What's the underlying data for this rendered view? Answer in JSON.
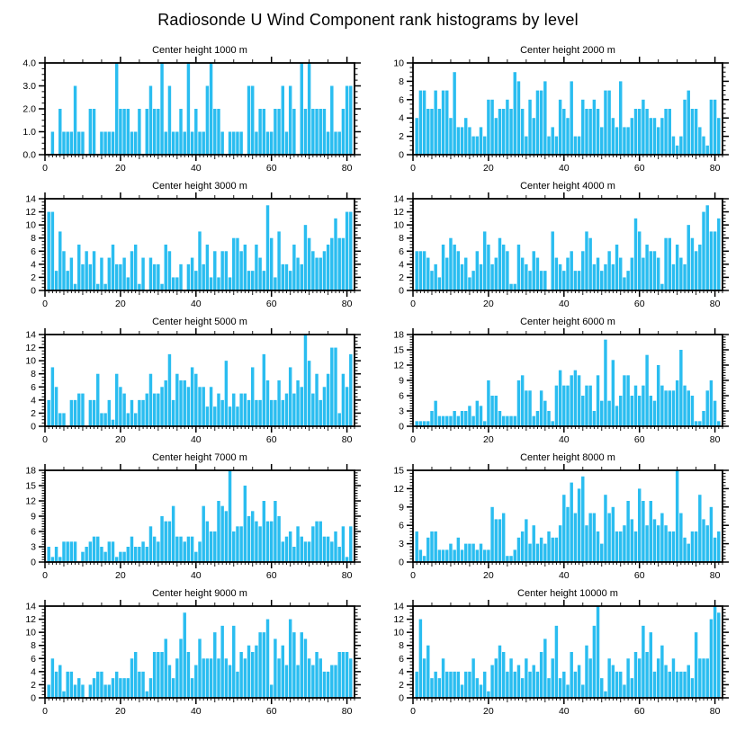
{
  "figure": {
    "title": "Radiosonde U Wind Component rank histograms by level"
  },
  "style": {
    "bar_color": "#2abdf0",
    "axis_color": "#000000",
    "background": "#ffffff"
  },
  "axes_shared": {
    "x_range": [
      0,
      82
    ],
    "x_major_ticks": [
      0,
      20,
      40,
      60,
      80
    ],
    "x_tick_labels": [
      "0",
      "20",
      "40",
      "60",
      "80"
    ],
    "grid": "off",
    "legend": "none"
  },
  "chart_data": [
    {
      "type": "bar",
      "title": "Center height 1000 m",
      "ylim": [
        0,
        4
      ],
      "ytick_step": 1,
      "ytick_labels": [
        "0.0",
        "1.0",
        "2.0",
        "3.0",
        "4.0"
      ],
      "minors_per_gap": 3,
      "values": [
        0,
        1,
        0,
        2,
        1,
        1,
        1,
        3,
        1,
        1,
        0,
        2,
        2,
        0,
        1,
        1,
        1,
        1,
        4,
        2,
        2,
        2,
        1,
        1,
        2,
        0,
        2,
        3,
        2,
        2,
        4,
        1,
        3,
        1,
        1,
        2,
        1,
        4,
        1,
        2,
        1,
        1,
        3,
        4,
        2,
        2,
        1,
        0,
        1,
        1,
        1,
        1,
        0,
        3,
        3,
        1,
        2,
        2,
        1,
        1,
        2,
        2,
        3,
        1,
        3,
        2,
        0,
        4,
        2,
        4,
        2,
        2,
        2,
        2,
        1,
        3,
        1,
        1,
        2,
        3,
        3
      ]
    },
    {
      "type": "bar",
      "title": "Center height 2000 m",
      "ylim": [
        0,
        10
      ],
      "ytick_step": 2,
      "ytick_labels": [
        "0",
        "2",
        "4",
        "6",
        "8",
        "10"
      ],
      "minors_per_gap": 3,
      "values": [
        4,
        7,
        7,
        5,
        5,
        7,
        5,
        7,
        7,
        4,
        9,
        3,
        3,
        4,
        3,
        2,
        2,
        3,
        2,
        6,
        6,
        4,
        5,
        5,
        6,
        5,
        9,
        8,
        5,
        2,
        6,
        4,
        7,
        7,
        8,
        2,
        3,
        2,
        6,
        5,
        4,
        8,
        2,
        2,
        6,
        5,
        5,
        6,
        5,
        3,
        7,
        7,
        4,
        3,
        8,
        3,
        3,
        4,
        5,
        5,
        6,
        5,
        4,
        4,
        3,
        4,
        5,
        5,
        2,
        1,
        2,
        6,
        7,
        5,
        5,
        3,
        2,
        1,
        6,
        6,
        4
      ]
    },
    {
      "type": "bar",
      "title": "Center height 3000 m",
      "ylim": [
        0,
        14
      ],
      "ytick_step": 2,
      "ytick_labels": [
        "0",
        "2",
        "4",
        "6",
        "8",
        "10",
        "12",
        "14"
      ],
      "minors_per_gap": 3,
      "values": [
        12,
        12,
        3,
        9,
        6,
        3,
        5,
        1,
        7,
        4,
        6,
        4,
        6,
        1,
        5,
        1,
        5,
        7,
        4,
        4,
        5,
        2,
        6,
        7,
        1,
        5,
        0,
        5,
        4,
        4,
        1,
        7,
        6,
        2,
        2,
        4,
        0,
        4,
        5,
        3,
        9,
        4,
        7,
        2,
        6,
        2,
        6,
        6,
        2,
        8,
        8,
        6,
        7,
        3,
        3,
        7,
        5,
        3,
        13,
        8,
        2,
        9,
        4,
        4,
        3,
        7,
        5,
        4,
        10,
        8,
        6,
        5,
        5,
        6,
        7,
        8,
        11,
        8,
        8,
        12,
        12
      ]
    },
    {
      "type": "bar",
      "title": "Center height 4000 m",
      "ylim": [
        0,
        14
      ],
      "ytick_step": 2,
      "ytick_labels": [
        "0",
        "2",
        "4",
        "6",
        "8",
        "10",
        "12",
        "14"
      ],
      "minors_per_gap": 3,
      "values": [
        6,
        6,
        6,
        5,
        3,
        4,
        2,
        7,
        5,
        8,
        7,
        6,
        4,
        5,
        2,
        3,
        6,
        4,
        9,
        7,
        4,
        5,
        8,
        7,
        6,
        1,
        1,
        7,
        5,
        4,
        3,
        6,
        5,
        3,
        3,
        0,
        9,
        5,
        4,
        3,
        5,
        6,
        3,
        3,
        6,
        9,
        8,
        4,
        5,
        3,
        4,
        6,
        4,
        7,
        5,
        2,
        3,
        5,
        11,
        9,
        5,
        7,
        6,
        6,
        5,
        1,
        8,
        8,
        4,
        7,
        5,
        4,
        10,
        8,
        6,
        7,
        12,
        13,
        9,
        9,
        11
      ]
    },
    {
      "type": "bar",
      "title": "Center height 5000 m",
      "ylim": [
        0,
        14
      ],
      "ytick_step": 2,
      "ytick_labels": [
        "0",
        "2",
        "4",
        "6",
        "8",
        "10",
        "12",
        "14"
      ],
      "minors_per_gap": 3,
      "values": [
        4,
        9,
        6,
        2,
        2,
        0,
        4,
        4,
        5,
        5,
        0,
        4,
        4,
        8,
        2,
        2,
        4,
        1,
        8,
        6,
        5,
        2,
        4,
        2,
        4,
        4,
        5,
        8,
        5,
        5,
        6,
        7,
        11,
        4,
        8,
        7,
        7,
        6,
        9,
        8,
        6,
        6,
        3,
        6,
        3,
        5,
        4,
        10,
        3,
        5,
        3,
        5,
        5,
        4,
        9,
        4,
        4,
        11,
        7,
        4,
        4,
        7,
        4,
        5,
        9,
        5,
        7,
        6,
        14,
        10,
        5,
        8,
        4,
        6,
        8,
        12,
        12,
        2,
        8,
        6,
        11
      ]
    },
    {
      "type": "bar",
      "title": "Center height 6000 m",
      "ylim": [
        0,
        18
      ],
      "ytick_step": 3,
      "ytick_labels": [
        "0",
        "3",
        "6",
        "9",
        "12",
        "15",
        "18"
      ],
      "minors_per_gap": 5,
      "values": [
        1,
        1,
        1,
        1,
        3,
        5,
        2,
        2,
        2,
        2,
        3,
        2,
        3,
        3,
        4,
        2,
        5,
        4,
        1,
        9,
        6,
        6,
        3,
        2,
        2,
        2,
        2,
        9,
        10,
        7,
        7,
        2,
        3,
        7,
        5,
        3,
        1,
        8,
        11,
        8,
        8,
        10,
        11,
        10,
        6,
        8,
        8,
        3,
        10,
        5,
        17,
        5,
        13,
        4,
        6,
        10,
        10,
        6,
        8,
        6,
        8,
        14,
        6,
        5,
        12,
        8,
        7,
        7,
        7,
        9,
        15,
        8,
        7,
        6,
        1,
        1,
        3,
        7,
        9,
        5,
        1
      ]
    },
    {
      "type": "bar",
      "title": "Center height 7000 m",
      "ylim": [
        0,
        18
      ],
      "ytick_step": 3,
      "ytick_labels": [
        "0",
        "3",
        "6",
        "9",
        "12",
        "15",
        "18"
      ],
      "minors_per_gap": 5,
      "values": [
        3,
        1,
        3,
        1,
        4,
        4,
        4,
        4,
        0,
        2,
        3,
        4,
        5,
        5,
        3,
        2,
        4,
        4,
        1,
        2,
        2,
        3,
        5,
        3,
        3,
        4,
        3,
        7,
        5,
        4,
        9,
        8,
        8,
        11,
        5,
        5,
        4,
        5,
        5,
        2,
        4,
        11,
        8,
        6,
        6,
        12,
        11,
        10,
        18,
        6,
        7,
        7,
        15,
        9,
        10,
        8,
        7,
        12,
        8,
        8,
        12,
        9,
        4,
        5,
        6,
        3,
        7,
        5,
        4,
        4,
        7,
        8,
        8,
        5,
        5,
        4,
        6,
        3,
        7,
        1,
        7
      ]
    },
    {
      "type": "bar",
      "title": "Center height 8000 m",
      "ylim": [
        0,
        15
      ],
      "ytick_step": 3,
      "ytick_labels": [
        "0",
        "3",
        "6",
        "9",
        "12",
        "15"
      ],
      "minors_per_gap": 5,
      "values": [
        5,
        2,
        1,
        4,
        5,
        5,
        2,
        2,
        2,
        3,
        2,
        4,
        2,
        3,
        3,
        3,
        2,
        3,
        2,
        2,
        9,
        7,
        7,
        8,
        1,
        1,
        2,
        4,
        5,
        7,
        3,
        6,
        3,
        4,
        3,
        5,
        4,
        4,
        6,
        11,
        9,
        13,
        8,
        12,
        14,
        6,
        8,
        8,
        5,
        3,
        11,
        8,
        9,
        5,
        5,
        6,
        10,
        7,
        5,
        12,
        10,
        6,
        10,
        7,
        6,
        8,
        6,
        5,
        5,
        15,
        8,
        4,
        3,
        5,
        5,
        11,
        7,
        6,
        9,
        4,
        5
      ]
    },
    {
      "type": "bar",
      "title": "Center height 9000 m",
      "ylim": [
        0,
        14
      ],
      "ytick_step": 2,
      "ytick_labels": [
        "0",
        "2",
        "4",
        "6",
        "8",
        "10",
        "12",
        "14"
      ],
      "minors_per_gap": 3,
      "values": [
        2,
        6,
        4,
        5,
        1,
        4,
        4,
        2,
        3,
        2,
        0,
        2,
        3,
        4,
        4,
        2,
        2,
        3,
        4,
        3,
        3,
        3,
        6,
        7,
        4,
        4,
        1,
        3,
        7,
        7,
        7,
        9,
        5,
        3,
        6,
        9,
        13,
        7,
        3,
        5,
        9,
        6,
        6,
        6,
        10,
        6,
        11,
        6,
        5,
        11,
        4,
        7,
        6,
        8,
        7,
        8,
        10,
        10,
        12,
        2,
        9,
        6,
        8,
        5,
        12,
        10,
        5,
        10,
        9,
        6,
        5,
        7,
        6,
        4,
        4,
        5,
        5,
        7,
        7,
        7,
        6
      ]
    },
    {
      "type": "bar",
      "title": "Center height 10000 m",
      "ylim": [
        0,
        14
      ],
      "ytick_step": 2,
      "ytick_labels": [
        "0",
        "2",
        "4",
        "6",
        "8",
        "10",
        "12",
        "14"
      ],
      "minors_per_gap": 3,
      "values": [
        4,
        12,
        6,
        8,
        3,
        4,
        3,
        6,
        4,
        4,
        4,
        4,
        2,
        4,
        4,
        6,
        3,
        2,
        4,
        1,
        5,
        6,
        8,
        7,
        4,
        6,
        4,
        5,
        3,
        6,
        4,
        5,
        4,
        7,
        9,
        3,
        6,
        11,
        3,
        4,
        2,
        7,
        4,
        5,
        2,
        8,
        6,
        11,
        14,
        3,
        1,
        6,
        5,
        4,
        4,
        2,
        6,
        3,
        7,
        6,
        11,
        7,
        10,
        4,
        6,
        8,
        5,
        4,
        6,
        4,
        4,
        4,
        5,
        3,
        10,
        6,
        6,
        6,
        12,
        14,
        13
      ]
    }
  ]
}
